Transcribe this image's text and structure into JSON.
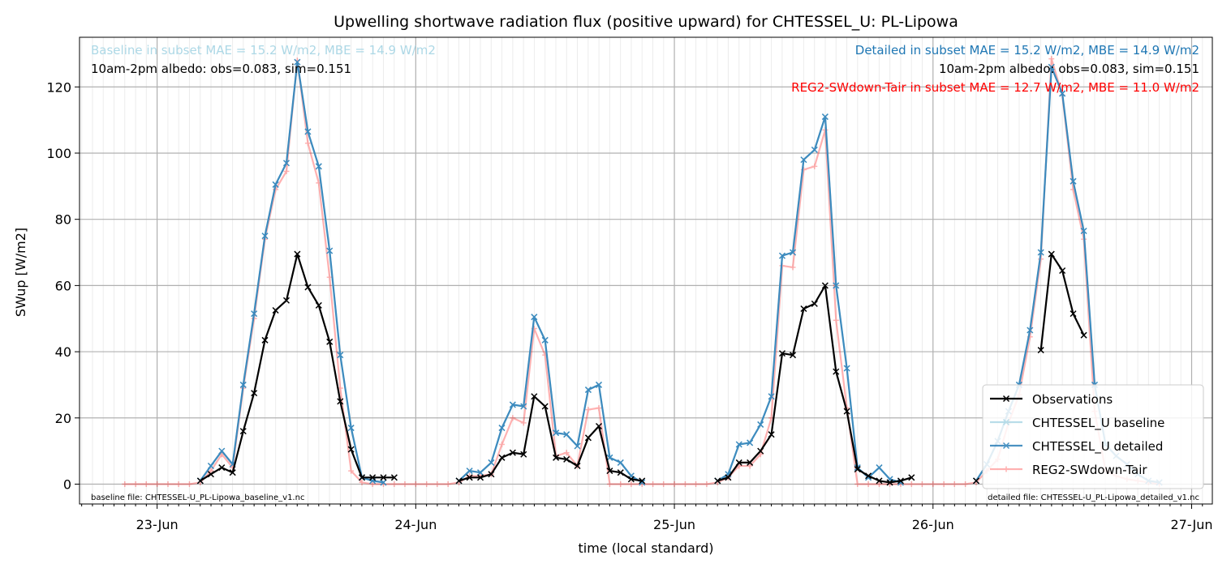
{
  "chart_data": {
    "type": "line",
    "title": "Upwelling shortwave radiation flux (positive upward) for CHTESSEL_U: PL-Lipowa",
    "xlabel": "time (local standard)",
    "ylabel": "SWup [W/m2]",
    "x_unit": "days since 23-Jun 00:00",
    "xlim": [
      -0.3,
      4.08
    ],
    "ylim": [
      -6,
      135
    ],
    "grid": true,
    "legend_position": "lower right",
    "x_ticks": [
      {
        "x": 0,
        "label": "23-Jun"
      },
      {
        "x": 1,
        "label": "24-Jun"
      },
      {
        "x": 2,
        "label": "25-Jun"
      },
      {
        "x": 3,
        "label": "26-Jun"
      },
      {
        "x": 4,
        "label": "27-Jun"
      }
    ],
    "y_ticks": [
      0,
      20,
      40,
      60,
      80,
      100,
      120
    ],
    "annotations": {
      "baseline_stats": "Baseline in subset MAE = 15.2 W/m2, MBE = 14.9 W/m2",
      "baseline_albedo": "10am-2pm albedo: obs=0.083, sim=0.151",
      "detailed_stats": "Detailed in subset MAE = 15.2 W/m2, MBE = 14.9 W/m2",
      "detailed_albedo": "10am-2pm albedo: obs=0.083, sim=0.151",
      "reg2_stats": "REG2-SWdown-Tair in subset MAE = 12.7 W/m2, MBE = 11.0 W/m2",
      "baseline_file": "baseline file: CHTESSEL-U_PL-Lipowa_baseline_v1.nc",
      "detailed_file": "detailed file: CHTESSEL-U_PL-Lipowa_detailed_v1.nc"
    },
    "colors": {
      "observations": "#000000",
      "baseline": "#add8e6",
      "detailed": "#1f77b4",
      "reg2": "#ff0000"
    },
    "series": [
      {
        "name": "Observations",
        "points": [
          [
            0.167,
            1
          ],
          [
            0.208,
            3
          ],
          [
            0.25,
            5
          ],
          [
            0.292,
            3.5
          ],
          [
            0.333,
            16
          ],
          [
            0.375,
            27.5
          ],
          [
            0.417,
            43.5
          ],
          [
            0.458,
            52.5
          ],
          [
            0.5,
            55.5
          ],
          [
            0.542,
            69.5
          ],
          [
            0.583,
            59.5
          ],
          [
            0.625,
            54
          ],
          [
            0.667,
            43
          ],
          [
            0.708,
            25
          ],
          [
            0.75,
            10.5
          ],
          [
            0.792,
            2
          ],
          [
            0.833,
            2
          ],
          [
            0.875,
            2
          ],
          [
            0.917,
            2
          ],
          [
            1.167,
            1
          ],
          [
            1.208,
            2
          ],
          [
            1.25,
            2
          ],
          [
            1.292,
            3
          ],
          [
            1.333,
            8
          ],
          [
            1.375,
            9.5
          ],
          [
            1.417,
            9
          ],
          [
            1.458,
            26.5
          ],
          [
            1.5,
            23.5
          ],
          [
            1.542,
            8
          ],
          [
            1.583,
            7.5
          ],
          [
            1.625,
            5.5
          ],
          [
            1.667,
            14
          ],
          [
            1.708,
            17.5
          ],
          [
            1.75,
            4
          ],
          [
            1.792,
            3.5
          ],
          [
            1.833,
            1.5
          ],
          [
            1.875,
            1
          ],
          [
            2.167,
            1
          ],
          [
            2.208,
            2
          ],
          [
            2.25,
            6.5
          ],
          [
            2.292,
            6.5
          ],
          [
            2.333,
            10
          ],
          [
            2.375,
            15
          ],
          [
            2.417,
            39.5
          ],
          [
            2.458,
            39
          ],
          [
            2.5,
            53
          ],
          [
            2.542,
            54.5
          ],
          [
            2.583,
            60
          ],
          [
            2.625,
            34
          ],
          [
            2.667,
            22
          ],
          [
            2.708,
            4.5
          ],
          [
            2.75,
            2.5
          ],
          [
            2.792,
            1
          ],
          [
            2.833,
            0.5
          ],
          [
            2.875,
            1
          ],
          [
            2.917,
            2
          ],
          [
            3.167,
            1
          ],
          [
            3.417,
            40.5
          ],
          [
            3.458,
            69.5
          ],
          [
            3.5,
            64.5
          ],
          [
            3.542,
            51.5
          ],
          [
            3.583,
            45
          ]
        ]
      },
      {
        "name": "CHTESSEL_U baseline",
        "points": [
          [
            0.167,
            1
          ],
          [
            0.208,
            5.5
          ],
          [
            0.25,
            10
          ],
          [
            0.292,
            6
          ],
          [
            0.333,
            30
          ],
          [
            0.375,
            51.5
          ],
          [
            0.417,
            75
          ],
          [
            0.458,
            90.5
          ],
          [
            0.5,
            97
          ],
          [
            0.542,
            127.5
          ],
          [
            0.583,
            106.5
          ],
          [
            0.625,
            96
          ],
          [
            0.667,
            70.5
          ],
          [
            0.708,
            39
          ],
          [
            0.75,
            17
          ],
          [
            0.792,
            2
          ],
          [
            0.833,
            1
          ],
          [
            0.875,
            0.5
          ],
          [
            1.167,
            1
          ],
          [
            1.208,
            4
          ],
          [
            1.25,
            3.5
          ],
          [
            1.292,
            6.5
          ],
          [
            1.333,
            17
          ],
          [
            1.375,
            24
          ],
          [
            1.417,
            23.5
          ],
          [
            1.458,
            50.5
          ],
          [
            1.5,
            43.5
          ],
          [
            1.542,
            15.5
          ],
          [
            1.583,
            15
          ],
          [
            1.625,
            11.5
          ],
          [
            1.667,
            28.5
          ],
          [
            1.708,
            30
          ],
          [
            1.75,
            8
          ],
          [
            1.792,
            6.5
          ],
          [
            1.833,
            2.5
          ],
          [
            1.875,
            0.5
          ],
          [
            2.167,
            1
          ],
          [
            2.208,
            3
          ],
          [
            2.25,
            12
          ],
          [
            2.292,
            12.5
          ],
          [
            2.333,
            18
          ],
          [
            2.375,
            26.5
          ],
          [
            2.417,
            69
          ],
          [
            2.458,
            70
          ],
          [
            2.5,
            98
          ],
          [
            2.542,
            101
          ],
          [
            2.583,
            111
          ],
          [
            2.625,
            60
          ],
          [
            2.667,
            35
          ],
          [
            2.708,
            5
          ],
          [
            2.75,
            2
          ],
          [
            2.792,
            5
          ],
          [
            2.833,
            1.5
          ],
          [
            2.875,
            0.5
          ],
          [
            3.167,
            1
          ],
          [
            3.208,
            6
          ],
          [
            3.25,
            13
          ],
          [
            3.292,
            22
          ],
          [
            3.333,
            30
          ],
          [
            3.375,
            46.5
          ],
          [
            3.417,
            70
          ],
          [
            3.458,
            126
          ],
          [
            3.5,
            118
          ],
          [
            3.542,
            91.5
          ],
          [
            3.583,
            76.5
          ],
          [
            3.625,
            30
          ],
          [
            3.667,
            12
          ],
          [
            3.708,
            8.5
          ],
          [
            3.75,
            6
          ],
          [
            3.792,
            3
          ],
          [
            3.833,
            1
          ],
          [
            3.875,
            0.5
          ]
        ]
      },
      {
        "name": "CHTESSEL_U detailed",
        "points": [
          [
            0.167,
            1
          ],
          [
            0.208,
            5.5
          ],
          [
            0.25,
            10
          ],
          [
            0.292,
            6
          ],
          [
            0.333,
            30
          ],
          [
            0.375,
            51.5
          ],
          [
            0.417,
            75
          ],
          [
            0.458,
            90.5
          ],
          [
            0.5,
            97
          ],
          [
            0.542,
            127.5
          ],
          [
            0.583,
            106.5
          ],
          [
            0.625,
            96
          ],
          [
            0.667,
            70.5
          ],
          [
            0.708,
            39
          ],
          [
            0.75,
            17
          ],
          [
            0.792,
            2
          ],
          [
            0.833,
            1
          ],
          [
            0.875,
            0.5
          ],
          [
            1.167,
            1
          ],
          [
            1.208,
            4
          ],
          [
            1.25,
            3.5
          ],
          [
            1.292,
            6.5
          ],
          [
            1.333,
            17
          ],
          [
            1.375,
            24
          ],
          [
            1.417,
            23.5
          ],
          [
            1.458,
            50.5
          ],
          [
            1.5,
            43.5
          ],
          [
            1.542,
            15.5
          ],
          [
            1.583,
            15
          ],
          [
            1.625,
            11.5
          ],
          [
            1.667,
            28.5
          ],
          [
            1.708,
            30
          ],
          [
            1.75,
            8
          ],
          [
            1.792,
            6.5
          ],
          [
            1.833,
            2.5
          ],
          [
            1.875,
            0.5
          ],
          [
            2.167,
            1
          ],
          [
            2.208,
            3
          ],
          [
            2.25,
            12
          ],
          [
            2.292,
            12.5
          ],
          [
            2.333,
            18
          ],
          [
            2.375,
            26.5
          ],
          [
            2.417,
            69
          ],
          [
            2.458,
            70
          ],
          [
            2.5,
            98
          ],
          [
            2.542,
            101
          ],
          [
            2.583,
            111
          ],
          [
            2.625,
            60
          ],
          [
            2.667,
            35
          ],
          [
            2.708,
            5
          ],
          [
            2.75,
            2
          ],
          [
            2.792,
            5
          ],
          [
            2.833,
            1.5
          ],
          [
            2.875,
            0.5
          ],
          [
            3.167,
            1
          ],
          [
            3.208,
            6
          ],
          [
            3.25,
            13
          ],
          [
            3.292,
            22
          ],
          [
            3.333,
            30
          ],
          [
            3.375,
            46.5
          ],
          [
            3.417,
            70
          ],
          [
            3.458,
            126
          ],
          [
            3.5,
            118
          ],
          [
            3.542,
            91.5
          ],
          [
            3.583,
            76.5
          ],
          [
            3.625,
            30
          ],
          [
            3.667,
            12
          ],
          [
            3.708,
            8.5
          ],
          [
            3.75,
            6
          ],
          [
            3.792,
            3
          ],
          [
            3.833,
            1
          ],
          [
            3.875,
            0.5
          ]
        ]
      },
      {
        "name": "REG2-SWdown-Tair",
        "points": [
          [
            -0.125,
            0
          ],
          [
            -0.083,
            0
          ],
          [
            -0.042,
            0
          ],
          [
            0,
            0
          ],
          [
            0.042,
            0
          ],
          [
            0.083,
            0
          ],
          [
            0.125,
            0
          ],
          [
            0.167,
            0.5
          ],
          [
            0.208,
            4
          ],
          [
            0.25,
            9
          ],
          [
            0.292,
            5
          ],
          [
            0.333,
            29
          ],
          [
            0.375,
            50
          ],
          [
            0.417,
            74
          ],
          [
            0.458,
            89
          ],
          [
            0.5,
            94.5
          ],
          [
            0.542,
            128
          ],
          [
            0.583,
            103
          ],
          [
            0.625,
            91
          ],
          [
            0.667,
            62.5
          ],
          [
            0.708,
            29
          ],
          [
            0.75,
            4
          ],
          [
            0.792,
            0.5
          ],
          [
            0.833,
            0
          ],
          [
            0.875,
            0
          ],
          [
            0.917,
            0
          ],
          [
            0.958,
            0
          ],
          [
            1,
            0
          ],
          [
            1.042,
            0
          ],
          [
            1.083,
            0
          ],
          [
            1.125,
            0
          ],
          [
            1.167,
            0.5
          ],
          [
            1.208,
            2.5
          ],
          [
            1.25,
            2.5
          ],
          [
            1.292,
            3
          ],
          [
            1.333,
            12
          ],
          [
            1.375,
            20
          ],
          [
            1.417,
            18.5
          ],
          [
            1.458,
            47
          ],
          [
            1.5,
            39
          ],
          [
            1.542,
            8.5
          ],
          [
            1.583,
            9.5
          ],
          [
            1.625,
            5.5
          ],
          [
            1.667,
            22.5
          ],
          [
            1.708,
            23
          ],
          [
            1.75,
            0
          ],
          [
            1.792,
            0
          ],
          [
            1.833,
            0
          ],
          [
            1.875,
            0
          ],
          [
            1.917,
            0
          ],
          [
            1.958,
            0
          ],
          [
            2,
            0
          ],
          [
            2.042,
            0
          ],
          [
            2.083,
            0
          ],
          [
            2.125,
            0
          ],
          [
            2.167,
            0.5
          ],
          [
            2.208,
            2
          ],
          [
            2.25,
            5.5
          ],
          [
            2.292,
            5.5
          ],
          [
            2.333,
            9
          ],
          [
            2.375,
            20
          ],
          [
            2.417,
            66
          ],
          [
            2.458,
            65.5
          ],
          [
            2.5,
            95
          ],
          [
            2.542,
            96
          ],
          [
            2.583,
            107
          ],
          [
            2.625,
            49.5
          ],
          [
            2.667,
            23
          ],
          [
            2.708,
            0
          ],
          [
            2.75,
            0
          ],
          [
            2.792,
            0
          ],
          [
            2.833,
            0
          ],
          [
            2.875,
            0
          ],
          [
            2.917,
            0
          ],
          [
            2.958,
            0
          ],
          [
            3,
            0
          ],
          [
            3.042,
            0
          ],
          [
            3.083,
            0
          ],
          [
            3.125,
            0
          ],
          [
            3.167,
            0.5
          ],
          [
            3.208,
            4
          ],
          [
            3.25,
            7.5
          ],
          [
            3.292,
            18.5
          ],
          [
            3.333,
            27
          ],
          [
            3.375,
            44.5
          ],
          [
            3.417,
            68
          ],
          [
            3.458,
            128.5
          ],
          [
            3.5,
            117.5
          ],
          [
            3.542,
            89
          ],
          [
            3.583,
            74
          ],
          [
            3.625,
            22
          ],
          [
            3.667,
            4
          ],
          [
            3.708,
            2.5
          ],
          [
            3.75,
            1.5
          ],
          [
            3.792,
            1
          ],
          [
            3.833,
            0.5
          ],
          [
            3.875,
            0
          ]
        ]
      }
    ]
  }
}
